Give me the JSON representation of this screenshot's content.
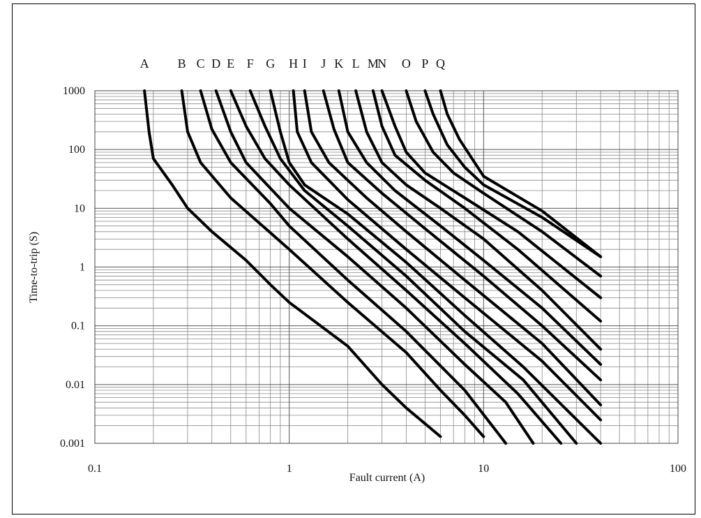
{
  "chart_data": {
    "type": "line",
    "title": "",
    "xlabel": "Fault current (A)",
    "ylabel": "Time-to-trip (S)",
    "x_scale": "log",
    "y_scale": "log",
    "xlim": [
      0.1,
      100
    ],
    "ylim": [
      0.001,
      1000
    ],
    "x_ticks": [
      "0.1",
      "1",
      "10",
      "100"
    ],
    "y_ticks": [
      "1000",
      "100",
      "10",
      "1",
      "0.1",
      "0.01",
      "0.001"
    ],
    "grid": true,
    "line_color": "#000000",
    "curve_labels": [
      "A",
      "B",
      "C",
      "D",
      "E",
      "F",
      "G",
      "H",
      "I",
      "J",
      "K",
      "L",
      "M",
      "N",
      "O",
      "P",
      "Q"
    ],
    "series": [
      {
        "name": "A",
        "points": [
          [
            0.18,
            1000
          ],
          [
            0.19,
            200
          ],
          [
            0.2,
            70
          ],
          [
            0.25,
            25
          ],
          [
            0.3,
            10
          ],
          [
            0.4,
            4
          ],
          [
            0.6,
            1.3
          ],
          [
            0.8,
            0.5
          ],
          [
            1,
            0.25
          ],
          [
            2,
            0.045
          ],
          [
            3,
            0.01
          ],
          [
            4,
            0.004
          ],
          [
            6,
            0.0013
          ]
        ]
      },
      {
        "name": "B",
        "points": [
          [
            0.28,
            1000
          ],
          [
            0.3,
            200
          ],
          [
            0.35,
            60
          ],
          [
            0.5,
            15
          ],
          [
            1,
            2
          ],
          [
            2,
            0.25
          ],
          [
            4,
            0.035
          ],
          [
            6,
            0.008
          ],
          [
            8,
            0.003
          ],
          [
            10,
            0.0013
          ]
        ]
      },
      {
        "name": "C",
        "points": [
          [
            0.35,
            1000
          ],
          [
            0.4,
            220
          ],
          [
            0.5,
            60
          ],
          [
            0.8,
            12
          ],
          [
            1,
            5
          ],
          [
            2,
            0.6
          ],
          [
            4,
            0.08
          ],
          [
            8,
            0.008
          ],
          [
            13,
            0.001
          ]
        ]
      },
      {
        "name": "D",
        "points": [
          [
            0.42,
            1000
          ],
          [
            0.5,
            200
          ],
          [
            0.6,
            60
          ],
          [
            1,
            10
          ],
          [
            2,
            1.5
          ],
          [
            4,
            0.2
          ],
          [
            8,
            0.022
          ],
          [
            13,
            0.005
          ],
          [
            18,
            0.001
          ]
        ]
      },
      {
        "name": "E",
        "points": [
          [
            0.5,
            1000
          ],
          [
            0.6,
            250
          ],
          [
            0.75,
            70
          ],
          [
            1,
            25
          ],
          [
            2,
            3
          ],
          [
            4,
            0.4
          ],
          [
            8,
            0.05
          ],
          [
            15,
            0.007
          ],
          [
            25,
            0.001
          ]
        ]
      },
      {
        "name": "F",
        "points": [
          [
            0.63,
            1000
          ],
          [
            0.75,
            250
          ],
          [
            0.9,
            70
          ],
          [
            1.2,
            20
          ],
          [
            2,
            5
          ],
          [
            4,
            0.7
          ],
          [
            8,
            0.08
          ],
          [
            16,
            0.012
          ],
          [
            30,
            0.001
          ]
        ]
      },
      {
        "name": "G",
        "points": [
          [
            0.8,
            1000
          ],
          [
            0.9,
            200
          ],
          [
            1,
            60
          ],
          [
            1.2,
            25
          ],
          [
            2,
            8
          ],
          [
            4,
            1.2
          ],
          [
            8,
            0.15
          ],
          [
            16,
            0.02
          ],
          [
            40,
            0.001
          ]
        ]
      },
      {
        "name": "H",
        "points": [
          [
            1.05,
            1000
          ],
          [
            1.1,
            200
          ],
          [
            1.3,
            60
          ],
          [
            2,
            14
          ],
          [
            4,
            2
          ],
          [
            8,
            0.3
          ],
          [
            20,
            0.025
          ],
          [
            40,
            0.0025
          ]
        ]
      },
      {
        "name": "I",
        "points": [
          [
            1.2,
            1000
          ],
          [
            1.3,
            200
          ],
          [
            1.6,
            60
          ],
          [
            2.5,
            15
          ],
          [
            4,
            4
          ],
          [
            8,
            0.6
          ],
          [
            20,
            0.05
          ],
          [
            40,
            0.0045
          ]
        ]
      },
      {
        "name": "J",
        "points": [
          [
            1.5,
            1000
          ],
          [
            1.7,
            220
          ],
          [
            2,
            60
          ],
          [
            3,
            18
          ],
          [
            5,
            4.5
          ],
          [
            10,
            0.7
          ],
          [
            20,
            0.1
          ],
          [
            40,
            0.012
          ]
        ]
      },
      {
        "name": "K",
        "points": [
          [
            1.8,
            1000
          ],
          [
            2,
            200
          ],
          [
            2.5,
            60
          ],
          [
            3.5,
            20
          ],
          [
            6,
            5
          ],
          [
            10,
            1.3
          ],
          [
            20,
            0.2
          ],
          [
            40,
            0.022
          ]
        ]
      },
      {
        "name": "L",
        "points": [
          [
            2.2,
            1000
          ],
          [
            2.5,
            200
          ],
          [
            3,
            60
          ],
          [
            4,
            25
          ],
          [
            6,
            10
          ],
          [
            10,
            3
          ],
          [
            20,
            0.4
          ],
          [
            40,
            0.04
          ]
        ]
      },
      {
        "name": "M",
        "points": [
          [
            2.7,
            1000
          ],
          [
            3,
            250
          ],
          [
            3.5,
            80
          ],
          [
            5,
            30
          ],
          [
            8,
            10
          ],
          [
            15,
            2
          ],
          [
            40,
            0.12
          ]
        ]
      },
      {
        "name": "N",
        "points": [
          [
            3,
            1000
          ],
          [
            3.5,
            250
          ],
          [
            4,
            90
          ],
          [
            5,
            40
          ],
          [
            8,
            15
          ],
          [
            15,
            4
          ],
          [
            40,
            0.3
          ]
        ]
      },
      {
        "name": "O",
        "points": [
          [
            4,
            1000
          ],
          [
            4.5,
            300
          ],
          [
            5.5,
            90
          ],
          [
            7,
            40
          ],
          [
            10,
            18
          ],
          [
            20,
            4
          ],
          [
            40,
            0.7
          ]
        ]
      },
      {
        "name": "P",
        "points": [
          [
            5,
            1000
          ],
          [
            5.5,
            400
          ],
          [
            6.5,
            120
          ],
          [
            8,
            50
          ],
          [
            10,
            25
          ],
          [
            20,
            7
          ],
          [
            40,
            1.5
          ]
        ]
      },
      {
        "name": "Q",
        "points": [
          [
            6,
            1000
          ],
          [
            6.5,
            400
          ],
          [
            7.5,
            150
          ],
          [
            10,
            35
          ],
          [
            20,
            9
          ],
          [
            40,
            1.5
          ]
        ]
      }
    ]
  }
}
